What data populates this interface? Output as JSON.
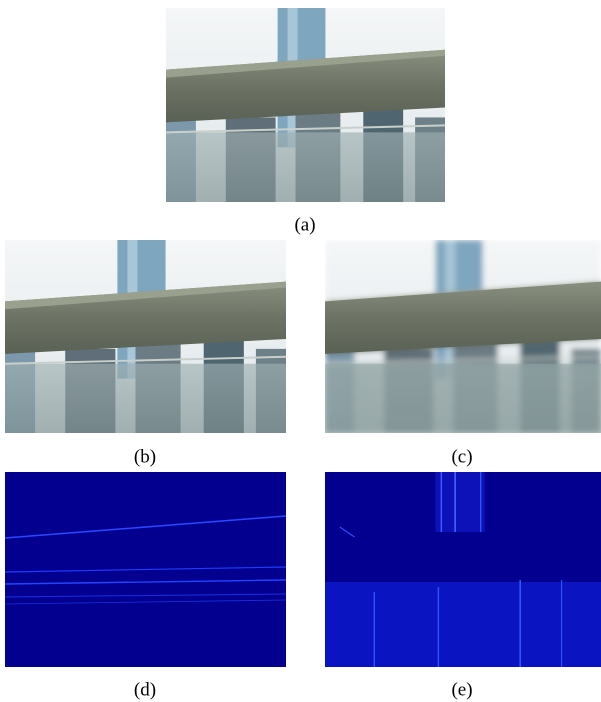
{
  "figure": {
    "panels": [
      {
        "caption": "(a)"
      },
      {
        "caption": "(b)"
      },
      {
        "caption": "(c)"
      },
      {
        "caption": "(d)"
      },
      {
        "caption": "(e)"
      }
    ]
  }
}
